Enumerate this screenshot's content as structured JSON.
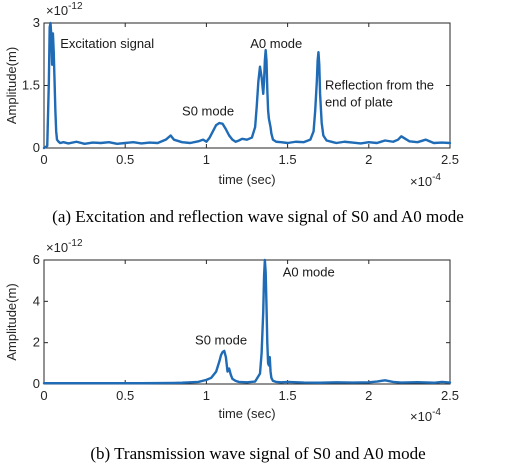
{
  "chart_data": [
    {
      "type": "line",
      "caption": "(a) Excitation and reflection wave signal of S0 and A0 mode",
      "xlabel": "time (sec)",
      "ylabel": "Amplitude(m)",
      "x_exponent": "-4",
      "y_exponent": "-12",
      "xlim": [
        0,
        2.5
      ],
      "ylim": [
        0,
        3
      ],
      "xticks": [
        0,
        0.5,
        1,
        1.5,
        2,
        2.5
      ],
      "xtick_labels": [
        "0",
        "0.5",
        "1",
        "1.5",
        "2",
        "2.5"
      ],
      "yticks": [
        0,
        1.5,
        3
      ],
      "ytick_labels": [
        "0",
        "1.5",
        "3"
      ],
      "grid": false,
      "line_color": "#1f6bb5",
      "series": [
        {
          "x": [
            0.0,
            0.02,
            0.03,
            0.035,
            0.04,
            0.045,
            0.05,
            0.055,
            0.06,
            0.065,
            0.07,
            0.075,
            0.08,
            0.09,
            0.1,
            0.12,
            0.15,
            0.2,
            0.25,
            0.3,
            0.35,
            0.4,
            0.45,
            0.5,
            0.55,
            0.6,
            0.65,
            0.7,
            0.75,
            0.78,
            0.8,
            0.85,
            0.9,
            0.95,
            0.98,
            1.0,
            1.02,
            1.04,
            1.06,
            1.08,
            1.1,
            1.12,
            1.14,
            1.16,
            1.18,
            1.2,
            1.22,
            1.25,
            1.28,
            1.3,
            1.31,
            1.32,
            1.33,
            1.34,
            1.35,
            1.355,
            1.36,
            1.365,
            1.37,
            1.375,
            1.38,
            1.385,
            1.39,
            1.395,
            1.4,
            1.41,
            1.43,
            1.46,
            1.5,
            1.55,
            1.6,
            1.64,
            1.66,
            1.67,
            1.68,
            1.685,
            1.69,
            1.695,
            1.7,
            1.71,
            1.72,
            1.74,
            1.78,
            1.8,
            1.85,
            1.9,
            1.95,
            2.0,
            2.05,
            2.1,
            2.15,
            2.18,
            2.2,
            2.25,
            2.3,
            2.35,
            2.4,
            2.45,
            2.5
          ],
          "y": [
            0.0,
            0.05,
            1.6,
            2.9,
            3.0,
            2.7,
            2.0,
            2.75,
            2.3,
            1.6,
            0.9,
            0.4,
            0.2,
            0.15,
            0.12,
            0.14,
            0.11,
            0.15,
            0.1,
            0.13,
            0.12,
            0.14,
            0.1,
            0.12,
            0.14,
            0.11,
            0.13,
            0.12,
            0.2,
            0.3,
            0.2,
            0.14,
            0.12,
            0.16,
            0.2,
            0.15,
            0.25,
            0.4,
            0.55,
            0.6,
            0.58,
            0.45,
            0.3,
            0.2,
            0.15,
            0.18,
            0.22,
            0.2,
            0.25,
            0.5,
            1.0,
            1.6,
            1.95,
            1.7,
            1.3,
            1.6,
            2.1,
            2.35,
            2.1,
            1.4,
            0.9,
            0.7,
            0.6,
            0.5,
            0.35,
            0.2,
            0.15,
            0.14,
            0.12,
            0.15,
            0.14,
            0.2,
            0.4,
            0.9,
            1.6,
            2.1,
            2.3,
            2.0,
            1.3,
            0.6,
            0.3,
            0.18,
            0.14,
            0.12,
            0.15,
            0.13,
            0.11,
            0.14,
            0.12,
            0.18,
            0.15,
            0.2,
            0.28,
            0.16,
            0.14,
            0.2,
            0.12,
            0.13,
            0.12
          ]
        }
      ],
      "annotations": [
        {
          "text": "Excitation signal",
          "x": 0.1,
          "y": 2.4
        },
        {
          "text": "S0 mode",
          "x": 0.85,
          "y": 0.78
        },
        {
          "text": "A0 mode",
          "x": 1.27,
          "y": 2.4
        },
        {
          "text": "Reflection from the",
          "x": 1.73,
          "y": 1.4
        },
        {
          "text": "end of plate",
          "x": 1.73,
          "y": 1.0
        }
      ]
    },
    {
      "type": "line",
      "caption": "(b) Transmission wave signal of S0 and A0 mode",
      "xlabel": "time (sec)",
      "ylabel": "Amplitude(m)",
      "x_exponent": "-4",
      "y_exponent": "-12",
      "xlim": [
        0,
        2.5
      ],
      "ylim": [
        0,
        6
      ],
      "xticks": [
        0,
        0.5,
        1,
        1.5,
        2,
        2.5
      ],
      "xtick_labels": [
        "0",
        "0.5",
        "1",
        "1.5",
        "2",
        "2.5"
      ],
      "yticks": [
        0,
        2,
        4,
        6
      ],
      "ytick_labels": [
        "0",
        "2",
        "4",
        "6"
      ],
      "grid": false,
      "line_color": "#1f6bb5",
      "series": [
        {
          "x": [
            0.0,
            0.2,
            0.4,
            0.6,
            0.8,
            0.85,
            0.9,
            0.95,
            1.0,
            1.03,
            1.06,
            1.08,
            1.09,
            1.1,
            1.11,
            1.12,
            1.13,
            1.14,
            1.15,
            1.16,
            1.18,
            1.2,
            1.25,
            1.3,
            1.33,
            1.34,
            1.35,
            1.355,
            1.36,
            1.365,
            1.37,
            1.375,
            1.38,
            1.385,
            1.39,
            1.395,
            1.4,
            1.41,
            1.43,
            1.46,
            1.5,
            1.6,
            1.7,
            1.8,
            1.9,
            2.0,
            2.05,
            2.1,
            2.15,
            2.2,
            2.3,
            2.4,
            2.45,
            2.5
          ],
          "y": [
            0.04,
            0.04,
            0.04,
            0.04,
            0.05,
            0.06,
            0.08,
            0.1,
            0.2,
            0.3,
            0.6,
            1.1,
            1.4,
            1.55,
            1.6,
            1.3,
            0.6,
            0.75,
            0.45,
            0.25,
            0.15,
            0.1,
            0.08,
            0.12,
            0.5,
            1.5,
            3.5,
            5.2,
            6.0,
            5.4,
            3.8,
            2.0,
            1.0,
            0.9,
            1.3,
            0.6,
            0.3,
            0.15,
            0.1,
            0.08,
            0.1,
            0.07,
            0.06,
            0.08,
            0.07,
            0.08,
            0.12,
            0.18,
            0.1,
            0.07,
            0.09,
            0.06,
            0.1,
            0.07
          ]
        }
      ],
      "annotations": [
        {
          "text": "S0 mode",
          "x": 0.93,
          "y": 1.9
        },
        {
          "text": "A0 mode",
          "x": 1.47,
          "y": 5.2
        }
      ]
    }
  ]
}
